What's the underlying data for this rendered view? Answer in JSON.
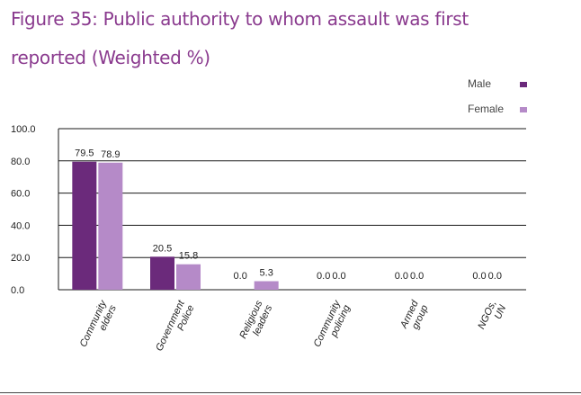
{
  "page": {
    "title_line1": "Figure 35: Public authority to whom assault was first",
    "title_line2": "reported (Weighted %)"
  },
  "chart_data": {
    "type": "bar",
    "title": "",
    "xlabel": "",
    "ylabel": "",
    "categories": [
      "Community elders",
      "Government Police",
      "Religious leaders",
      "Community policing",
      "Armed group",
      "NGOs, UN"
    ],
    "series": [
      {
        "name": "Male",
        "color": "#6b2a7b",
        "values": [
          79.5,
          20.5,
          0.0,
          0.0,
          0.0,
          0.0
        ],
        "labels": [
          "79.5",
          "20.5",
          "0.0",
          "0.0",
          "0.0",
          "0.0"
        ]
      },
      {
        "name": "Female",
        "color": "#b58ac8",
        "values": [
          78.9,
          15.8,
          5.3,
          0.0,
          0.0,
          0.0
        ],
        "labels": [
          "78.9",
          "15.8",
          "5.3",
          "0.0",
          "0.0",
          "0.0"
        ]
      }
    ],
    "ylim": [
      0,
      100
    ],
    "yticks": [
      "100.0",
      "80.0",
      "60.0",
      "40.0",
      "20.0",
      "0.0"
    ],
    "grid": true,
    "legend": "top-right"
  }
}
